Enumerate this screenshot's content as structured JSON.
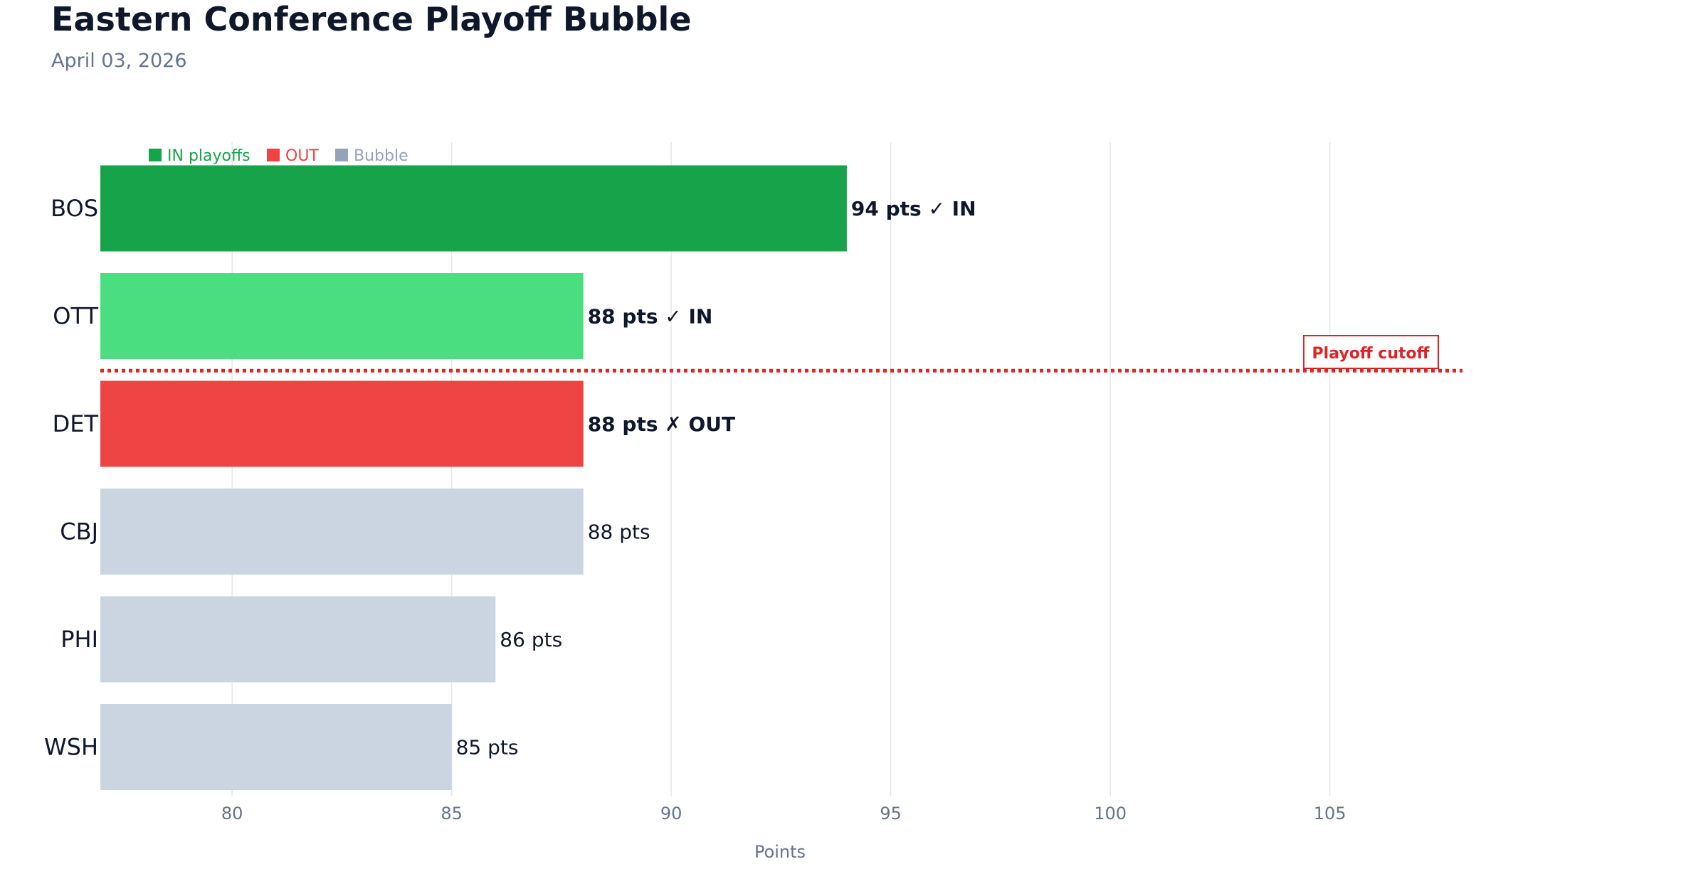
{
  "page": {
    "title": "Eastern Conference Playoff Bubble",
    "subtitle": "April 03, 2026"
  },
  "colors": {
    "in_dark": "#16a34a",
    "in_light": "#4ade80",
    "out": "#ef4444",
    "bubble": "#cbd5e1",
    "cutoff": "#dc2626",
    "grid": "#e5e7eb"
  },
  "chart_data": {
    "type": "bar",
    "orientation": "horizontal",
    "xlabel": "Points",
    "xlim": [
      77,
      110
    ],
    "xticks": [
      80,
      85,
      90,
      95,
      100,
      105
    ],
    "grid": true,
    "categories": [
      "BOS",
      "OTT",
      "DET",
      "CBJ",
      "PHI",
      "WSH"
    ],
    "values": [
      94,
      88,
      88,
      88,
      86,
      85
    ],
    "labels": [
      "94 pts ✓ IN",
      "88 pts ✓ IN",
      "88 pts ✗ OUT",
      "88 pts",
      "86 pts",
      "85 pts"
    ],
    "status": [
      "in",
      "in",
      "out",
      "bubble",
      "bubble",
      "bubble"
    ],
    "bar_colors": [
      "#16a34a",
      "#4ade80",
      "#ef4444",
      "#cbd5e1",
      "#cbd5e1",
      "#cbd5e1"
    ],
    "legend": {
      "placement": "top-left",
      "items": [
        {
          "label": "IN playoffs",
          "color": "#16a34a"
        },
        {
          "label": "OUT",
          "color": "#ef4444"
        },
        {
          "label": "Bubble",
          "color": "#94a3b8"
        }
      ]
    },
    "annotations": {
      "cutoff_label": "Playoff cutoff",
      "cutoff_between": [
        "OTT",
        "DET"
      ]
    }
  }
}
